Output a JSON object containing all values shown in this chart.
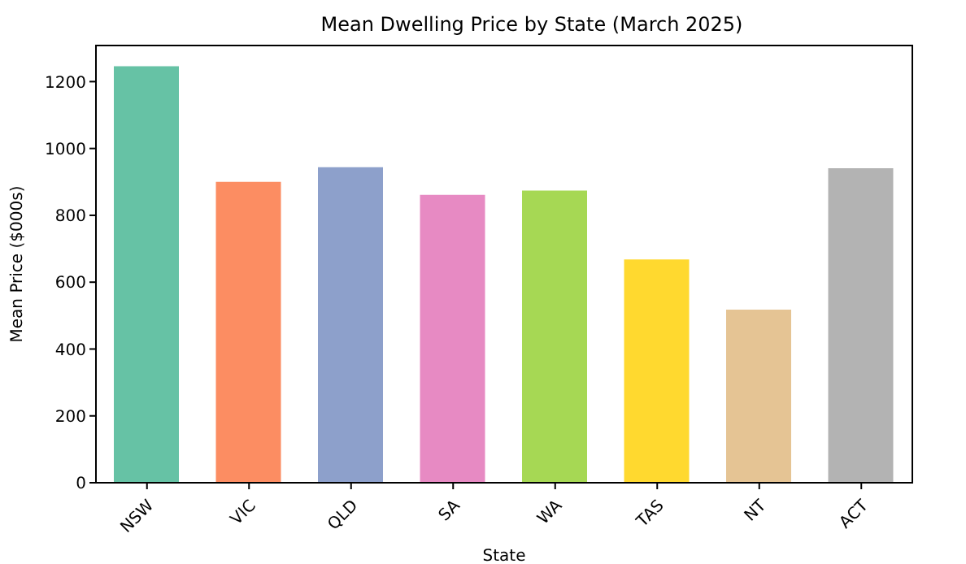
{
  "chart_data": {
    "type": "bar",
    "title": "Mean Dwelling Price by State (March 2025)",
    "xlabel": "State",
    "ylabel": "Mean Price ($000s)",
    "categories": [
      "NSW",
      "VIC",
      "QLD",
      "SA",
      "WA",
      "TAS",
      "NT",
      "ACT"
    ],
    "values": [
      1246,
      900,
      944,
      861,
      874,
      668,
      518,
      941
    ],
    "colors": [
      "#66c2a5",
      "#fc8d62",
      "#8da0cb",
      "#e78ac3",
      "#a6d854",
      "#ffd92f",
      "#e5c494",
      "#b3b3b3"
    ],
    "ylim": [
      0,
      1308
    ],
    "yticks": [
      0,
      200,
      400,
      600,
      800,
      1000,
      1200
    ],
    "grid": false,
    "legend": false
  }
}
